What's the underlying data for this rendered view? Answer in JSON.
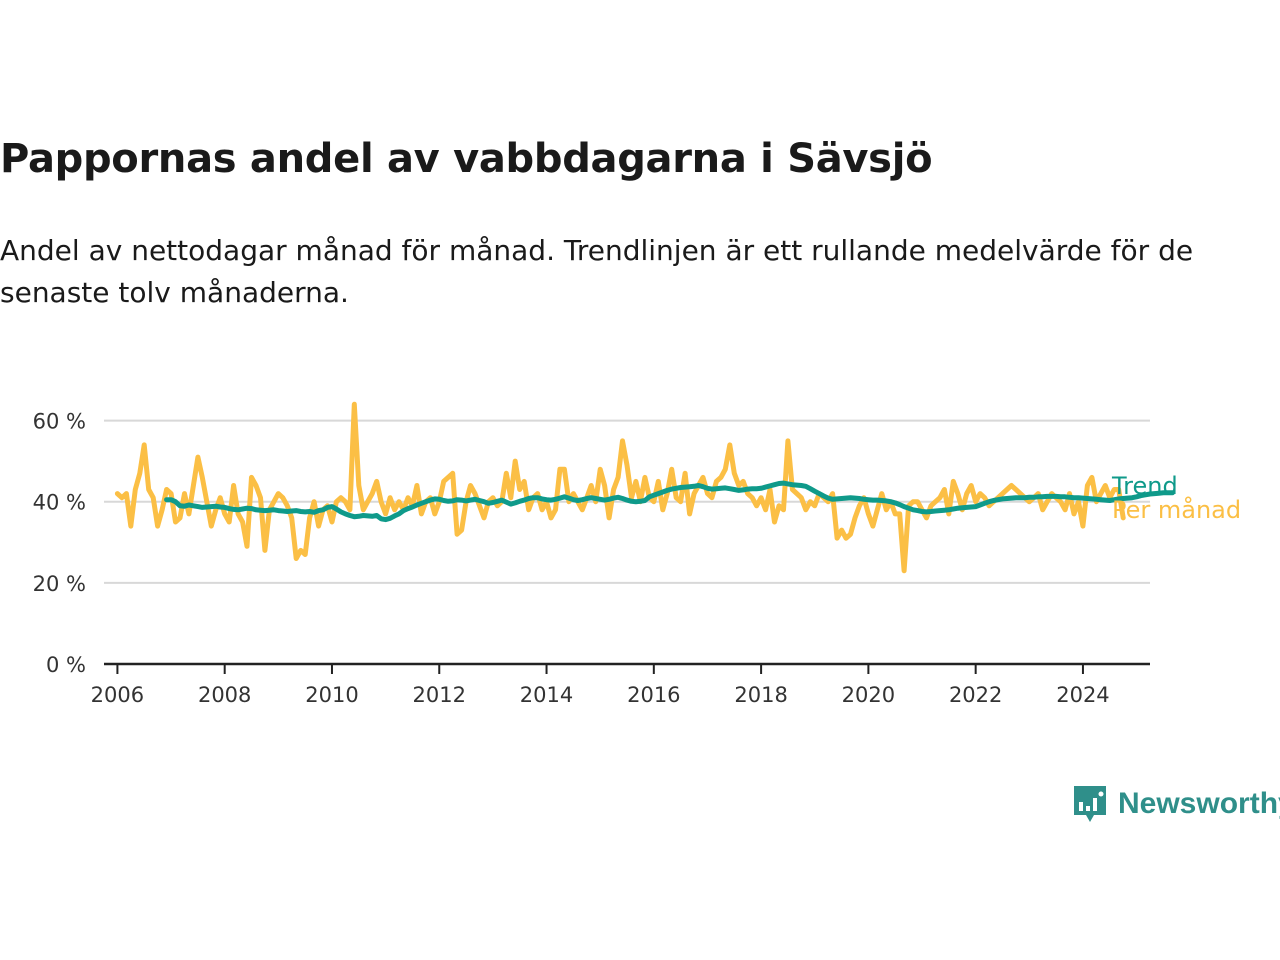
{
  "title": "Pappornas andel av vabbdagarna i Sävsjö",
  "subtitle": "Andel av nettodagar månad för månad. Trendlinjen är ett rullande medelvärde för de senaste tolv månaderna.",
  "brand": {
    "name": "Newsworthy",
    "color": "#2f8f8a",
    "icon": "chart-speech-bubble-icon"
  },
  "colors": {
    "monthly": "#fbbf45",
    "trend": "#0f9a8a",
    "grid": "#d8d8d8",
    "axis": "#222222"
  },
  "chart_data": {
    "type": "line",
    "title": "Pappornas andel av vabbdagarna i Sävsjö",
    "xlabel": "",
    "ylabel": "",
    "xlim": [
      2005.75,
      2025.25
    ],
    "ylim": [
      0,
      70
    ],
    "x_ticks": [
      2006,
      2008,
      2010,
      2012,
      2014,
      2016,
      2018,
      2020,
      2022,
      2024
    ],
    "x_tick_labels": [
      "2006",
      "2008",
      "2010",
      "2012",
      "2014",
      "2016",
      "2018",
      "2020",
      "2022",
      "2024"
    ],
    "y_ticks": [
      0,
      20,
      40,
      60
    ],
    "y_tick_labels": [
      "0 %",
      "20 %",
      "40 %",
      "60 %"
    ],
    "grid": true,
    "legend": "direct labels at right end of lines",
    "series": [
      {
        "name": "Per månad",
        "start": [
          2006,
          1
        ],
        "values": [
          42,
          41,
          42,
          34,
          43,
          47,
          54,
          43,
          41,
          34,
          38,
          43,
          42,
          35,
          36,
          42,
          37,
          44,
          51,
          46,
          40,
          34,
          38,
          41,
          37,
          35,
          44,
          37,
          35,
          29,
          46,
          44,
          41,
          28,
          38,
          40,
          42,
          41,
          39,
          36,
          26,
          28,
          27,
          36,
          40,
          34,
          38,
          39,
          35,
          40,
          41,
          40,
          38,
          64,
          44,
          38,
          40,
          42,
          45,
          40,
          37,
          41,
          38,
          40,
          38,
          41,
          39,
          44,
          37,
          40,
          41,
          37,
          40,
          45,
          46,
          47,
          32,
          33,
          40,
          44,
          42,
          39,
          36,
          40,
          41,
          39,
          40,
          47,
          41,
          50,
          43,
          45,
          38,
          41,
          42,
          38,
          40,
          36,
          38,
          48,
          48,
          40,
          42,
          40,
          38,
          41,
          44,
          40,
          48,
          44,
          36,
          43,
          46,
          55,
          49,
          41,
          45,
          40,
          46,
          41,
          40,
          45,
          38,
          42,
          48,
          41,
          40,
          47,
          37,
          42,
          44,
          46,
          42,
          41,
          45,
          46,
          48,
          54,
          47,
          44,
          45,
          42,
          41,
          39,
          41,
          38,
          43,
          35,
          39,
          38,
          55,
          43,
          42,
          41,
          38,
          40,
          39,
          42,
          41,
          40,
          42,
          31,
          33,
          31,
          32,
          36,
          39,
          41,
          37,
          34,
          38,
          42,
          38,
          40,
          37,
          37,
          23,
          39,
          40,
          40,
          38,
          36,
          39,
          40,
          41,
          43,
          37,
          45,
          42,
          38,
          42,
          44,
          40,
          42,
          41,
          39,
          40,
          41,
          42,
          43,
          44,
          43,
          42,
          41,
          40,
          41,
          42,
          38,
          40,
          42,
          41,
          40,
          38,
          42,
          37,
          40,
          34,
          44,
          46,
          40,
          42,
          44,
          41,
          43,
          43,
          36
        ]
      },
      {
        "name": "Trend",
        "start": [
          2006,
          12
        ],
        "values": [
          40.5,
          40.5,
          40,
          39,
          38.9,
          39.2,
          39.0,
          38.8,
          38.6,
          38.7,
          38.8,
          38.9,
          38.7,
          38.6,
          38.3,
          38.1,
          38.0,
          38.2,
          38.4,
          38.3,
          38.0,
          37.9,
          37.8,
          37.9,
          38.0,
          37.8,
          37.7,
          37.6,
          37.7,
          37.8,
          37.6,
          37.5,
          37.6,
          37.4,
          37.8,
          38.0,
          38.6,
          38.8,
          38.2,
          37.5,
          37.0,
          36.6,
          36.3,
          36.4,
          36.6,
          36.5,
          36.4,
          36.6,
          35.8,
          35.6,
          35.9,
          36.5,
          37.0,
          37.8,
          38.3,
          38.7,
          39.2,
          39.6,
          40.0,
          40.4,
          40.7,
          40.6,
          40.3,
          40.1,
          40.2,
          40.5,
          40.4,
          40.2,
          40.4,
          40.6,
          40.3,
          40.0,
          39.6,
          39.8,
          40.1,
          40.4,
          39.9,
          39.4,
          39.7,
          40.1,
          40.4,
          40.8,
          41.0,
          41.0,
          40.7,
          40.5,
          40.4,
          40.6,
          40.9,
          41.2,
          40.9,
          40.5,
          40.3,
          40.5,
          40.8,
          41.0,
          40.8,
          40.6,
          40.4,
          40.6,
          40.9,
          41.1,
          40.8,
          40.4,
          40.1,
          40.0,
          40.1,
          40.3,
          41.2,
          41.6,
          42.0,
          42.4,
          42.8,
          43.1,
          43.3,
          43.5,
          43.6,
          43.7,
          43.8,
          44.0,
          43.7,
          43.3,
          43.1,
          43.2,
          43.3,
          43.4,
          43.2,
          43.0,
          42.8,
          42.9,
          43.1,
          43.2,
          43.2,
          43.3,
          43.6,
          43.9,
          44.2,
          44.5,
          44.6,
          44.4,
          44.2,
          44.1,
          44.0,
          43.8,
          43.2,
          42.6,
          42.0,
          41.4,
          40.9,
          40.6,
          40.7,
          40.8,
          40.9,
          41.0,
          40.9,
          40.8,
          40.6,
          40.5,
          40.4,
          40.4,
          40.3,
          40.2,
          40.0,
          39.7,
          39.3,
          38.8,
          38.4,
          38.0,
          37.8,
          37.6,
          37.5,
          37.6,
          37.7,
          37.8,
          37.9,
          38.0,
          38.2,
          38.4,
          38.5,
          38.6,
          38.7,
          38.8,
          39.2,
          39.6,
          40.0,
          40.3,
          40.5,
          40.7,
          40.8,
          40.9,
          41.0,
          41.0,
          41.0,
          41.1,
          41.1,
          41.2,
          41.2,
          41.3,
          41.3,
          41.3,
          41.2,
          41.2,
          41.1,
          41.0,
          41.0,
          40.9,
          40.8,
          40.7,
          40.6,
          40.5,
          40.4,
          40.3,
          40.5,
          40.7,
          40.8,
          40.9,
          41.0,
          41.2,
          41.5,
          41.7,
          41.9,
          42.0,
          42.1,
          42.2,
          42.2,
          42.2
        ]
      }
    ]
  }
}
